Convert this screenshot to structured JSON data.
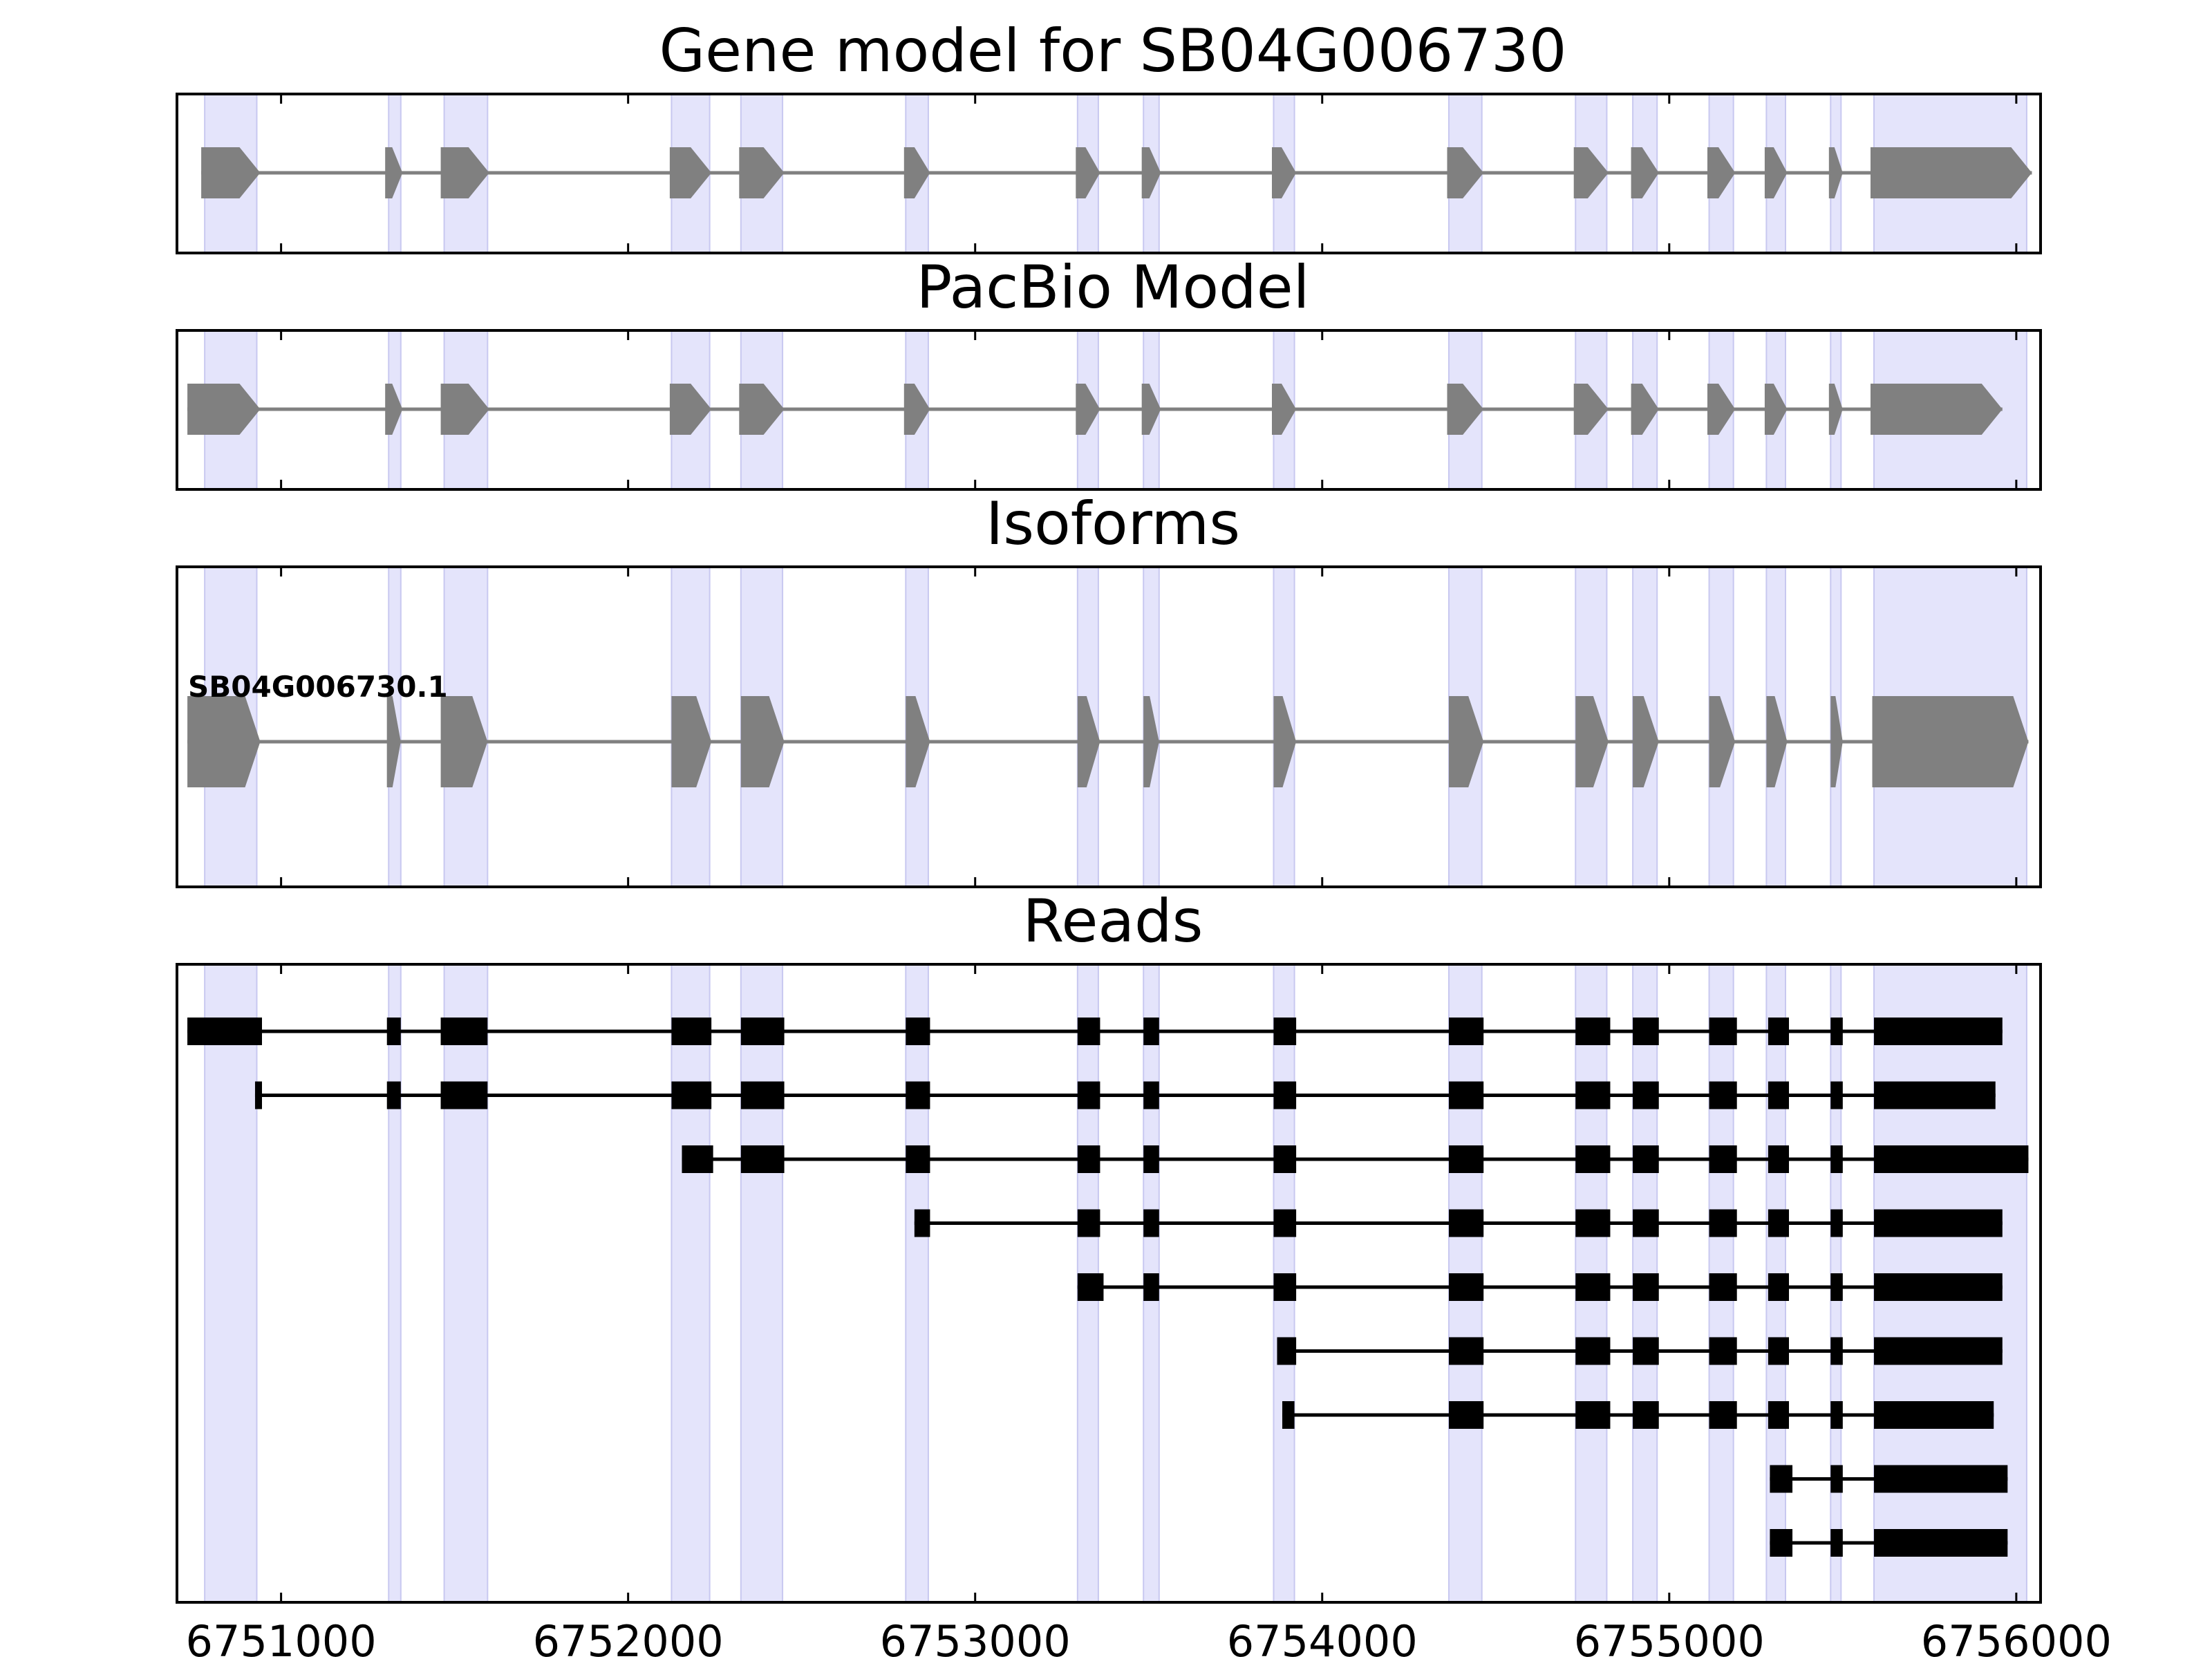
{
  "chart_data": {
    "type": "gene-structure",
    "xlim": [
      6750700,
      6756070
    ],
    "xticks": [
      6751000,
      6752000,
      6753000,
      6754000,
      6755000,
      6756000
    ],
    "xtick_labels": [
      "6751000",
      "6752000",
      "6753000",
      "6754000",
      "6755000",
      "6756000"
    ],
    "colors": {
      "exon_band": "#e4e4fb",
      "exon_band_edge": "#c8c8f0",
      "model": "#808080",
      "read": "#000000"
    },
    "highlight_regions": [
      [
        6750780,
        6750930
      ],
      [
        6751310,
        6751345
      ],
      [
        6751470,
        6751595
      ],
      [
        6752125,
        6752235
      ],
      [
        6752325,
        6752445
      ],
      [
        6752800,
        6752865
      ],
      [
        6753295,
        6753355
      ],
      [
        6753485,
        6753530
      ],
      [
        6753860,
        6753920
      ],
      [
        6754365,
        6754460
      ],
      [
        6754730,
        6754820
      ],
      [
        6754895,
        6754965
      ],
      [
        6755115,
        6755185
      ],
      [
        6755280,
        6755335
      ],
      [
        6755465,
        6755495
      ],
      [
        6755590,
        6756030
      ]
    ],
    "panels": [
      {
        "title": "Gene model for SB04G006730",
        "kind": "model",
        "exons": [
          [
            6750770,
            6750940
          ],
          [
            6751300,
            6751350
          ],
          [
            6751460,
            6751600
          ],
          [
            6752120,
            6752240
          ],
          [
            6752320,
            6752450
          ],
          [
            6752795,
            6752870
          ],
          [
            6753290,
            6753360
          ],
          [
            6753480,
            6753535
          ],
          [
            6753855,
            6753925
          ],
          [
            6754360,
            6754465
          ],
          [
            6754725,
            6754825
          ],
          [
            6754890,
            6754970
          ],
          [
            6755110,
            6755190
          ],
          [
            6755275,
            6755340
          ],
          [
            6755460,
            6755500
          ],
          [
            6755580,
            6756045
          ]
        ]
      },
      {
        "title": "PacBio Model",
        "kind": "model",
        "exons": [
          [
            6750730,
            6750940
          ],
          [
            6751300,
            6751350
          ],
          [
            6751460,
            6751600
          ],
          [
            6752120,
            6752240
          ],
          [
            6752320,
            6752450
          ],
          [
            6752795,
            6752870
          ],
          [
            6753290,
            6753360
          ],
          [
            6753480,
            6753535
          ],
          [
            6753855,
            6753925
          ],
          [
            6754360,
            6754465
          ],
          [
            6754725,
            6754825
          ],
          [
            6754890,
            6754970
          ],
          [
            6755110,
            6755190
          ],
          [
            6755275,
            6755340
          ],
          [
            6755460,
            6755500
          ],
          [
            6755580,
            6755960
          ]
        ]
      },
      {
        "title": "Isoforms",
        "kind": "isoform",
        "isoform_label": "SB04G006730.1",
        "exons": [
          [
            6750730,
            6750940
          ],
          [
            6751305,
            6751345
          ],
          [
            6751460,
            6751595
          ],
          [
            6752125,
            6752240
          ],
          [
            6752325,
            6752450
          ],
          [
            6752800,
            6752870
          ],
          [
            6753295,
            6753360
          ],
          [
            6753485,
            6753530
          ],
          [
            6753860,
            6753925
          ],
          [
            6754365,
            6754465
          ],
          [
            6754730,
            6754825
          ],
          [
            6754895,
            6754970
          ],
          [
            6755115,
            6755190
          ],
          [
            6755280,
            6755340
          ],
          [
            6755465,
            6755500
          ],
          [
            6755585,
            6756035
          ]
        ]
      },
      {
        "title": "Reads",
        "kind": "reads",
        "reads": [
          [
            [
              6750730,
              6750945
            ],
            [
              6751305,
              6751345
            ],
            [
              6751460,
              6751595
            ],
            [
              6752125,
              6752240
            ],
            [
              6752325,
              6752450
            ],
            [
              6752800,
              6752870
            ],
            [
              6753295,
              6753360
            ],
            [
              6753485,
              6753530
            ],
            [
              6753860,
              6753925
            ],
            [
              6754365,
              6754465
            ],
            [
              6754730,
              6754830
            ],
            [
              6754895,
              6754970
            ],
            [
              6755115,
              6755195
            ],
            [
              6755285,
              6755345
            ],
            [
              6755465,
              6755500
            ],
            [
              6755590,
              6755960
            ]
          ],
          [
            [
              6750925,
              6750945
            ],
            [
              6751305,
              6751345
            ],
            [
              6751460,
              6751595
            ],
            [
              6752125,
              6752240
            ],
            [
              6752325,
              6752450
            ],
            [
              6752800,
              6752870
            ],
            [
              6753295,
              6753360
            ],
            [
              6753485,
              6753530
            ],
            [
              6753860,
              6753925
            ],
            [
              6754365,
              6754465
            ],
            [
              6754730,
              6754830
            ],
            [
              6754895,
              6754970
            ],
            [
              6755115,
              6755195
            ],
            [
              6755285,
              6755345
            ],
            [
              6755465,
              6755500
            ],
            [
              6755590,
              6755940
            ]
          ],
          [
            [
              6752155,
              6752245
            ],
            [
              6752325,
              6752450
            ],
            [
              6752800,
              6752870
            ],
            [
              6753295,
              6753360
            ],
            [
              6753485,
              6753530
            ],
            [
              6753860,
              6753925
            ],
            [
              6754365,
              6754465
            ],
            [
              6754730,
              6754830
            ],
            [
              6754895,
              6754970
            ],
            [
              6755115,
              6755195
            ],
            [
              6755285,
              6755345
            ],
            [
              6755465,
              6755500
            ],
            [
              6755590,
              6756035
            ]
          ],
          [
            [
              6752825,
              6752870
            ],
            [
              6753295,
              6753360
            ],
            [
              6753485,
              6753530
            ],
            [
              6753860,
              6753925
            ],
            [
              6754365,
              6754465
            ],
            [
              6754730,
              6754830
            ],
            [
              6754895,
              6754970
            ],
            [
              6755115,
              6755195
            ],
            [
              6755285,
              6755345
            ],
            [
              6755465,
              6755500
            ],
            [
              6755590,
              6755960
            ]
          ],
          [
            [
              6753295,
              6753370
            ],
            [
              6753485,
              6753530
            ],
            [
              6753860,
              6753925
            ],
            [
              6754365,
              6754465
            ],
            [
              6754730,
              6754830
            ],
            [
              6754895,
              6754970
            ],
            [
              6755115,
              6755195
            ],
            [
              6755285,
              6755345
            ],
            [
              6755465,
              6755500
            ],
            [
              6755590,
              6755960
            ]
          ],
          [
            [
              6753870,
              6753925
            ],
            [
              6754365,
              6754465
            ],
            [
              6754730,
              6754830
            ],
            [
              6754895,
              6754970
            ],
            [
              6755115,
              6755195
            ],
            [
              6755285,
              6755345
            ],
            [
              6755465,
              6755500
            ],
            [
              6755590,
              6755960
            ]
          ],
          [
            [
              6753885,
              6753920
            ],
            [
              6754365,
              6754465
            ],
            [
              6754730,
              6754830
            ],
            [
              6754895,
              6754970
            ],
            [
              6755115,
              6755195
            ],
            [
              6755285,
              6755345
            ],
            [
              6755465,
              6755500
            ],
            [
              6755590,
              6755935
            ]
          ],
          [
            [
              6755290,
              6755355
            ],
            [
              6755465,
              6755500
            ],
            [
              6755590,
              6755975
            ]
          ],
          [
            [
              6755290,
              6755355
            ],
            [
              6755465,
              6755500
            ],
            [
              6755590,
              6755975
            ]
          ]
        ]
      }
    ]
  }
}
